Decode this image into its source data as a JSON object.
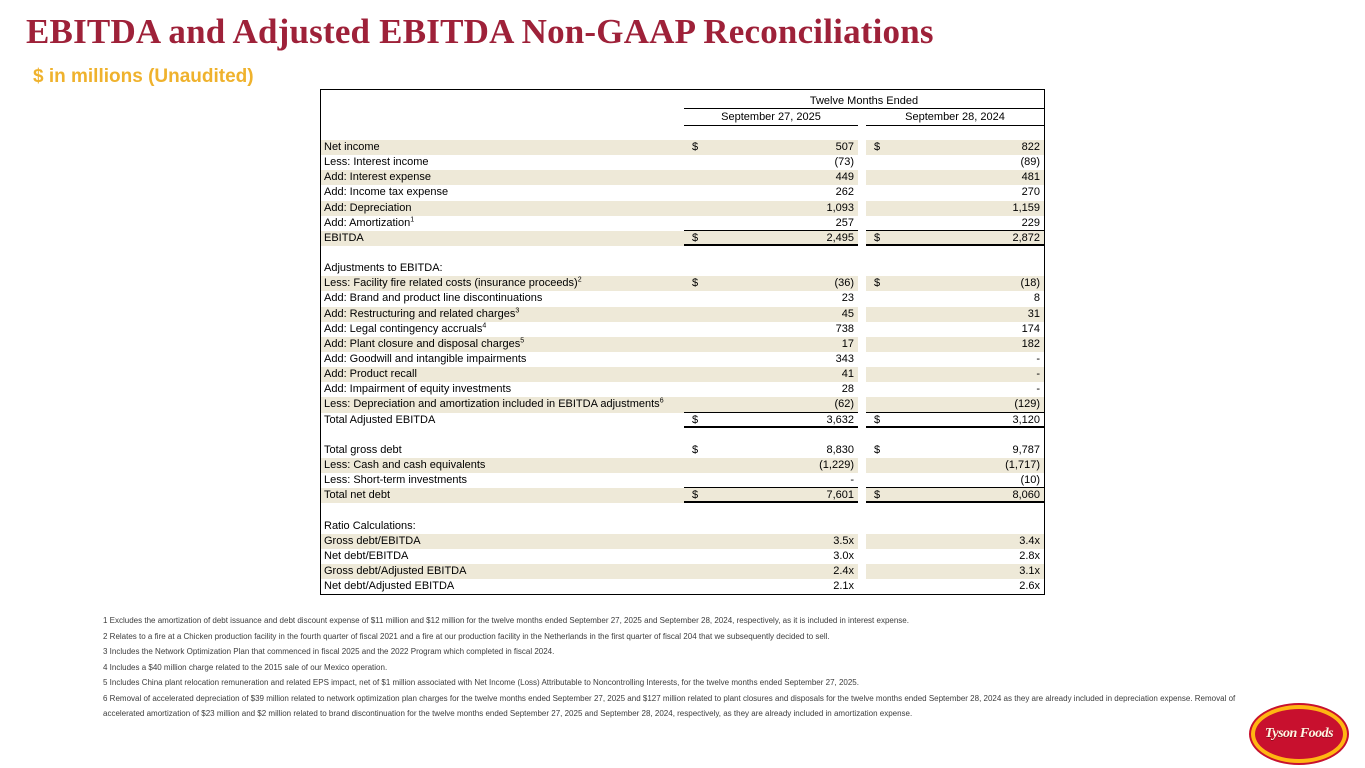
{
  "page": {
    "title": "EBITDA and Adjusted EBITDA Non-GAAP Reconciliations",
    "subtitle": "$ in millions (Unaudited)"
  },
  "colors": {
    "title_red": "#9E2139",
    "subtitle_gold": "#EFB22D",
    "shaded_row": "#EEE9D8",
    "logo_red": "#C8102E",
    "logo_gold": "#FFB612"
  },
  "table": {
    "header": {
      "span_label": "Twelve Months Ended",
      "col1": "September 27, 2025",
      "col2": "September 28, 2024"
    },
    "rows": [
      {
        "label": "Net income",
        "d1": "$",
        "v1": "507",
        "d2": "$",
        "v2": "822",
        "shaded": true
      },
      {
        "label": "Less: Interest income",
        "v1": "(73)",
        "v2": "(89)"
      },
      {
        "label": "Add: Interest expense",
        "v1": "449",
        "v2": "481",
        "shaded": true
      },
      {
        "label": "Add: Income tax expense",
        "v1": "262",
        "v2": "270"
      },
      {
        "label": "Add: Depreciation",
        "v1": "1,093",
        "v2": "1,159",
        "shaded": true
      },
      {
        "label": "Add: Amortization",
        "sup": "1",
        "v1": "257",
        "v2": "229",
        "vborder": "single"
      },
      {
        "label": "EBITDA",
        "d1": "$",
        "v1": "2,495",
        "d2": "$",
        "v2": "2,872",
        "shaded": true,
        "vborder": "thick"
      },
      {
        "blank": true,
        "label": ""
      },
      {
        "label": "Adjustments to EBITDA:"
      },
      {
        "label": "Less: Facility fire related costs (insurance proceeds)",
        "sup": "2",
        "d1": "$",
        "v1": "(36)",
        "d2": "$",
        "v2": "(18)",
        "shaded": true
      },
      {
        "label": "Add: Brand and product line discontinuations",
        "v1": "23",
        "v2": "8"
      },
      {
        "label": "Add: Restructuring and related charges",
        "sup": "3",
        "v1": "45",
        "v2": "31",
        "shaded": true
      },
      {
        "label": "Add: Legal contingency accruals",
        "sup": "4",
        "v1": "738",
        "v2": "174"
      },
      {
        "label": "Add: Plant closure and disposal charges",
        "sup": "5",
        "v1": "17",
        "v2": "182",
        "shaded": true
      },
      {
        "label": "Add: Goodwill and intangible impairments",
        "v1": "343",
        "v2": "-"
      },
      {
        "label": "Add: Product recall",
        "v1": "41",
        "v2": "-",
        "shaded": true
      },
      {
        "label": "Add: Impairment of equity investments",
        "v1": "28",
        "v2": "-"
      },
      {
        "label": "Less: Depreciation and amortization included in EBITDA adjustments",
        "sup": "6",
        "v1": "(62)",
        "v2": "(129)",
        "shaded": true,
        "vborder": "single"
      },
      {
        "label": "Total Adjusted EBITDA",
        "d1": "$",
        "v1": "3,632",
        "d2": "$",
        "v2": "3,120",
        "vborder": "thick"
      },
      {
        "blank": true,
        "label": ""
      },
      {
        "label": "Total gross debt",
        "d1": "$",
        "v1": "8,830",
        "d2": "$",
        "v2": "9,787"
      },
      {
        "label": "Less: Cash and cash equivalents",
        "v1": "(1,229)",
        "v2": "(1,717)",
        "shaded": true
      },
      {
        "label": "Less: Short-term investments",
        "v1": "-",
        "v2": "(10)",
        "vborder": "single"
      },
      {
        "label": "Total net debt",
        "d1": "$",
        "v1": "7,601",
        "d2": "$",
        "v2": "8,060",
        "shaded": true,
        "vborder": "thick"
      },
      {
        "blank": true,
        "label": ""
      },
      {
        "label": "Ratio Calculations:"
      },
      {
        "label": "Gross debt/EBITDA",
        "v1": "3.5x",
        "v2": "3.4x",
        "shaded": true
      },
      {
        "label": "Net debt/EBITDA",
        "v1": "3.0x",
        "v2": "2.8x"
      },
      {
        "label": "Gross debt/Adjusted EBITDA",
        "v1": "2.4x",
        "v2": "3.1x",
        "shaded": true
      },
      {
        "label": "Net debt/Adjusted EBITDA",
        "v1": "2.1x",
        "v2": "2.6x"
      }
    ]
  },
  "footnotes": [
    "1 Excludes the amortization of debt issuance and debt discount expense of $11 million and $12 million for the twelve months ended September 27, 2025 and September 28, 2024, respectively, as it is included in interest expense.",
    "2 Relates to a fire at a Chicken production facility in the fourth quarter of fiscal 2021 and a fire at our production facility in the Netherlands in the first quarter of fiscal 204 that we subsequently decided to sell.",
    "3 Includes the Network Optimization Plan that commenced in fiscal 2025 and the 2022 Program which completed in fiscal 2024.",
    "4 Includes a $40 million charge related to the 2015 sale of our Mexico operation.",
    "5 Includes China plant relocation remuneration and related EPS impact, net of $1 million associated with Net Income (Loss) Attributable to Noncontrolling Interests, for the twelve months ended September 27, 2025.",
    "6 Removal of accelerated depreciation of $39 million related to network optimization plan charges for the twelve months ended September 27, 2025 and $127 million related to plant closures and disposals for the twelve months ended September 28, 2024 as they are already included in depreciation expense. Removal of accelerated amortization of $23 million and $2 million related to brand discontinuation for the twelve months ended September 27, 2025 and September 28, 2024, respectively, as they are already included in amortization expense."
  ],
  "logo": {
    "text": "Tyson Foods"
  }
}
